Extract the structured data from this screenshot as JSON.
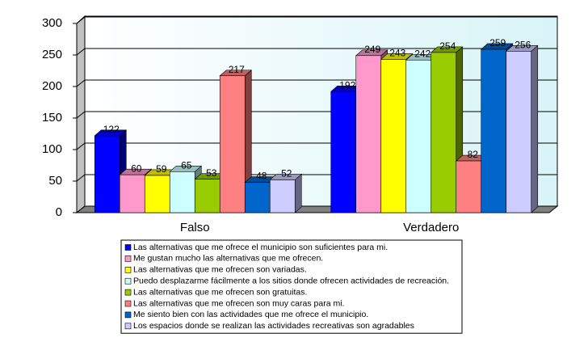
{
  "chart_data": {
    "type": "bar3d",
    "categories": [
      "Falso",
      "Verdadero"
    ],
    "series": [
      {
        "name": "Las alternativas que me ofrece el municipio son suficientes para mi.",
        "color": "#0000ff",
        "values": [
          122,
          192
        ]
      },
      {
        "name": "Me gustan mucho las alternativas que me ofrecen.",
        "color": "#ff99cc",
        "values": [
          60,
          249
        ]
      },
      {
        "name": "Las alternativas que me ofrecen son variadas.",
        "color": "#ffff00",
        "values": [
          59,
          243
        ]
      },
      {
        "name": "Puedo desplazarme fácilmente a los sitios donde ofrecen actividades de recreación.",
        "color": "#ccffff",
        "values": [
          65,
          242
        ]
      },
      {
        "name": "Las alternativas que me ofrecen son gratuitas.",
        "color": "#99cc00",
        "values": [
          53,
          254
        ]
      },
      {
        "name": "Las alternativas que me ofrecen son muy caras para mi.",
        "color": "#ff8080",
        "values": [
          217,
          82
        ]
      },
      {
        "name": "Me siento bien con las actividades que me ofrece el municipio.",
        "color": "#0066cc",
        "values": [
          48,
          259
        ]
      },
      {
        "name": "Los espacios donde se realizan las actividades recreativas son agradables",
        "color": "#ccccff",
        "values": [
          52,
          256
        ]
      }
    ],
    "ylim": [
      0,
      300
    ],
    "yticks": [
      0,
      50,
      100,
      150,
      200,
      250,
      300
    ],
    "grid": true,
    "legend": "bottom"
  }
}
